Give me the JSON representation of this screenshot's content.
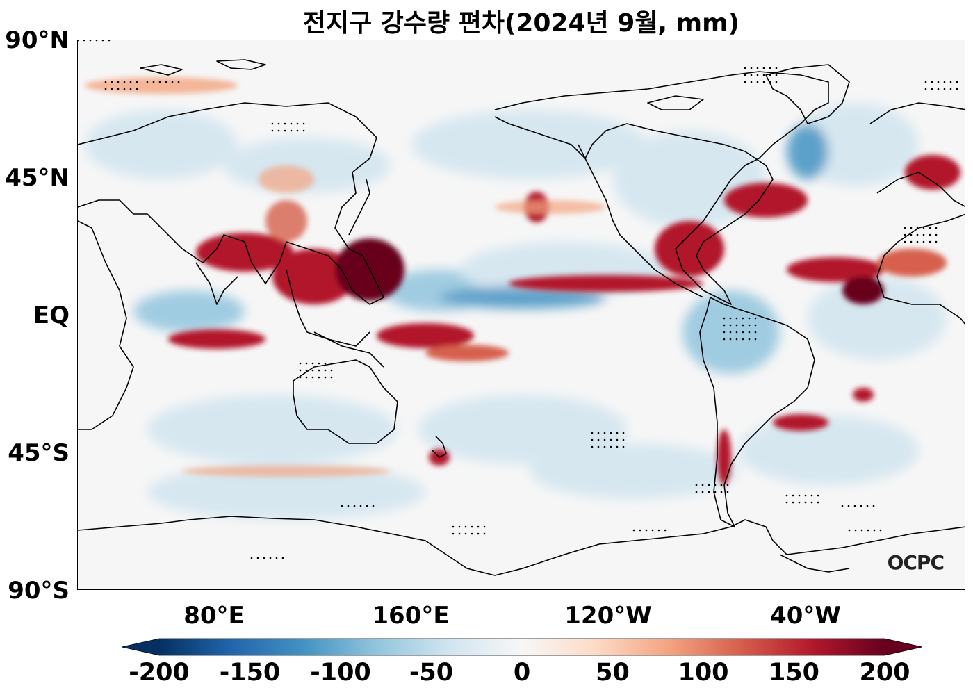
{
  "title": "전지구 강수량 편차(2024년 9월, mm)",
  "logo_text": "OCPC",
  "lat_labels": [
    "90°N",
    "45°N",
    "EQ",
    "45°S",
    "90°S"
  ],
  "lon_labels": [
    "80°E",
    "160°E",
    "120°W",
    "40°W"
  ],
  "colorbar": {
    "ticks": [
      "-200",
      "-150",
      "-100",
      "-50",
      "0",
      "50",
      "100",
      "150",
      "200"
    ],
    "min": -200,
    "max": 200,
    "colormap": "RdBu_r",
    "colors": [
      "#053061",
      "#2166ac",
      "#4393c3",
      "#92c5de",
      "#d1e5f0",
      "#f7f7f7",
      "#fddbc7",
      "#f4a582",
      "#d6604d",
      "#b2182b",
      "#67001f"
    ]
  },
  "map": {
    "projection": "PlateCarree",
    "lon_range": [
      25,
      385
    ],
    "lat_range": [
      -90,
      90
    ],
    "central_longitude": 205
  }
}
